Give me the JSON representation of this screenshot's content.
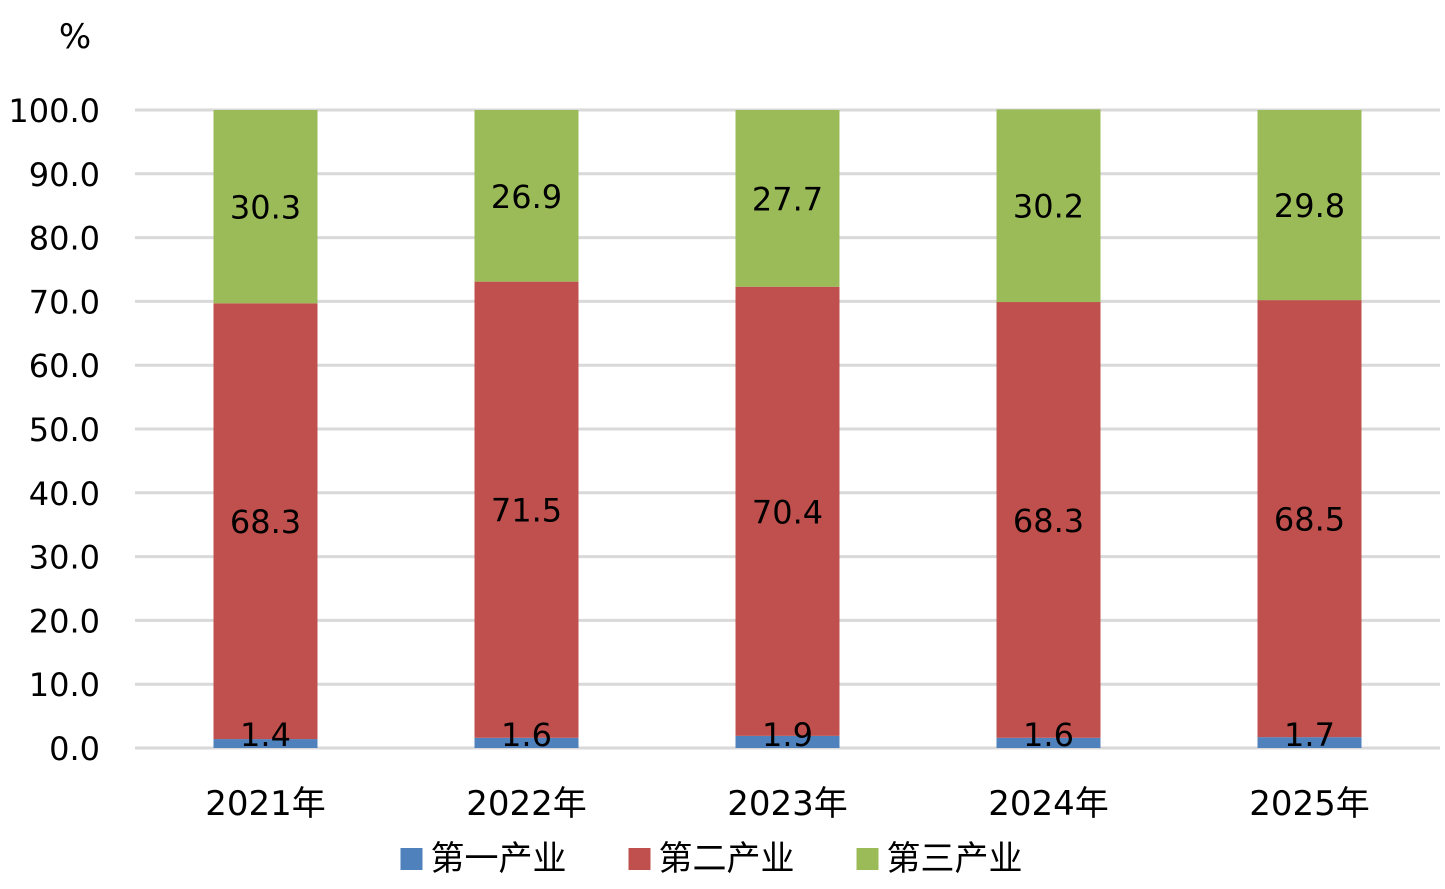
{
  "chart_data": {
    "type": "bar",
    "stacked": true,
    "unit_label": "%",
    "categories": [
      "2021年",
      "2022年",
      "2023年",
      "2024年",
      "2025年"
    ],
    "series": [
      {
        "name": "第一产业",
        "values": [
          1.4,
          1.6,
          1.9,
          1.6,
          1.7
        ],
        "color": "#4f81bd"
      },
      {
        "name": "第二产业",
        "values": [
          68.3,
          71.5,
          70.4,
          68.3,
          68.5
        ],
        "color": "#c0504d"
      },
      {
        "name": "第三产业",
        "values": [
          30.3,
          26.9,
          27.7,
          30.2,
          29.8
        ],
        "color": "#9bbb59"
      }
    ],
    "ylim": [
      0,
      100
    ],
    "ytick_step": 10,
    "ytick_labels": [
      "0.0",
      "10.0",
      "20.0",
      "30.0",
      "40.0",
      "50.0",
      "60.0",
      "70.0",
      "80.0",
      "90.0",
      "100.0"
    ],
    "grid": true,
    "legend_position": "bottom",
    "gridline_color": "#d9d9d9"
  }
}
